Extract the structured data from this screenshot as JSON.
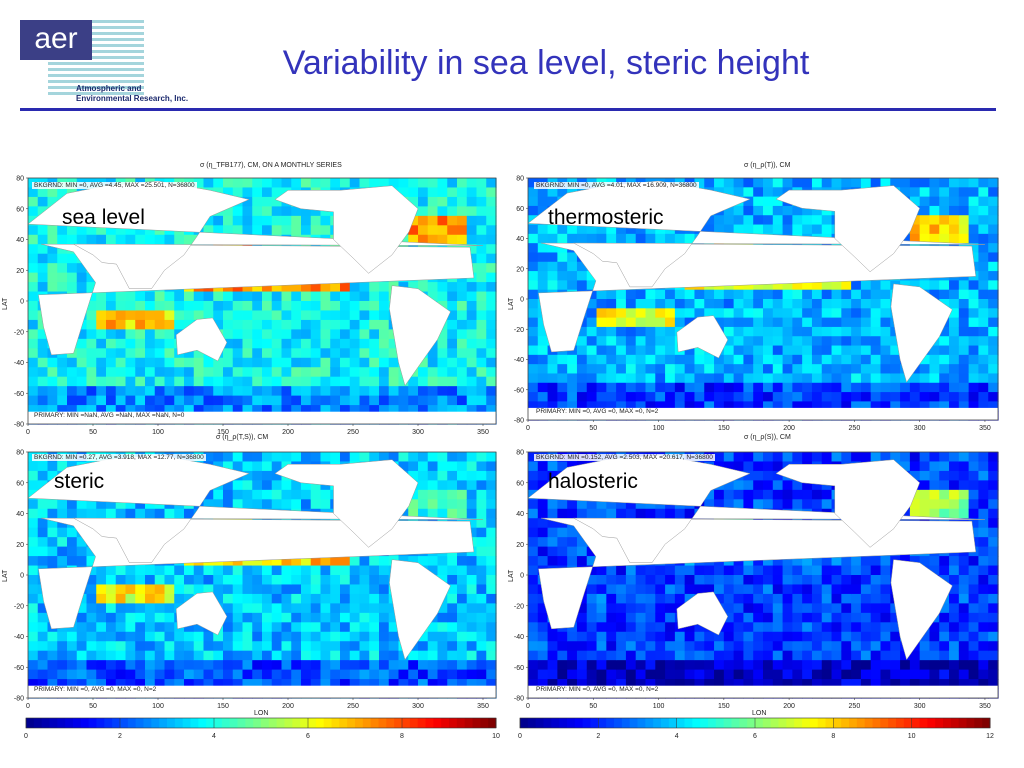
{
  "header": {
    "logo_text": "aer",
    "logo_line1": "Atmospheric and",
    "logo_line2": "Environmental Research, Inc.",
    "title": "Variability in sea level, steric height"
  },
  "colors": {
    "title": "#3333bb",
    "rule": "#2a2ab0",
    "colormap": [
      "#00008f",
      "#0000ff",
      "#0080ff",
      "#00ffff",
      "#80ff80",
      "#ffff00",
      "#ff8000",
      "#ff0000",
      "#800000"
    ]
  },
  "chart_data": [
    {
      "type": "heatmap",
      "label": "sea level",
      "title": "σ (η_TFB177), CM, ON A MONTHLY SERIES",
      "bkgrnd_info": "BKGRND: MIN =0, AVG =4.45, MAX =25.501, N=36800",
      "primary_info": "PRIMARY: MIN =NaN, AVG =NaN, MAX =NaN, N=0",
      "xlabel": "",
      "ylabel": "LAT",
      "xlim": [
        0,
        360
      ],
      "ylim": [
        -80,
        80
      ],
      "xticks": [
        0,
        50,
        100,
        150,
        200,
        250,
        300,
        350
      ],
      "yticks": [
        80,
        60,
        40,
        20,
        0,
        -20,
        -40,
        -60,
        -80
      ]
    },
    {
      "type": "heatmap",
      "label": "thermosteric",
      "title": "σ (η_ρ(T)), CM",
      "bkgrnd_info": "BKGRND: MIN =0, AVG =4.01, MAX =16.909, N=36800",
      "primary_info": "PRIMARY: MIN =0, AVG =0, MAX =0, N=2",
      "xlabel": "",
      "ylabel": "LAT",
      "xlim": [
        0,
        360
      ],
      "ylim": [
        -80,
        80
      ],
      "xticks": [
        0,
        50,
        100,
        150,
        200,
        250,
        300,
        350
      ],
      "yticks": [
        80,
        60,
        40,
        20,
        0,
        -20,
        -40,
        -60,
        -80
      ]
    },
    {
      "type": "heatmap",
      "label": "steric",
      "title": "σ (η_ρ(T,S)), CM",
      "bkgrnd_info": "BKGRND: MIN =0.27, AVG =3.918, MAX =12.77, N=36800",
      "primary_info": "PRIMARY: MIN =0, AVG =0, MAX =0, N=2",
      "xlabel": "LON",
      "ylabel": "LAT",
      "xlim": [
        0,
        360
      ],
      "ylim": [
        -80,
        80
      ],
      "xticks": [
        0,
        50,
        100,
        150,
        200,
        250,
        300,
        350
      ],
      "yticks": [
        80,
        60,
        40,
        20,
        0,
        -20,
        -40,
        -60,
        -80
      ],
      "colorbar_ticks": [
        0,
        2,
        4,
        6,
        8,
        10
      ]
    },
    {
      "type": "heatmap",
      "label": "halosteric",
      "title": "σ (η_ρ(S)), CM",
      "bkgrnd_info": "BKGRND: MIN =0.152, AVG =2.503, MAX =20.617, N=36800",
      "primary_info": "PRIMARY: MIN =0, AVG =0, MAX =0, N=2",
      "xlabel": "LON",
      "ylabel": "LAT",
      "xlim": [
        0,
        360
      ],
      "ylim": [
        -80,
        80
      ],
      "xticks": [
        0,
        50,
        100,
        150,
        200,
        250,
        300,
        350
      ],
      "yticks": [
        80,
        60,
        40,
        20,
        0,
        -20,
        -40,
        -60,
        -80
      ],
      "colorbar_ticks": [
        0,
        2,
        4,
        6,
        8,
        10,
        12
      ]
    }
  ]
}
